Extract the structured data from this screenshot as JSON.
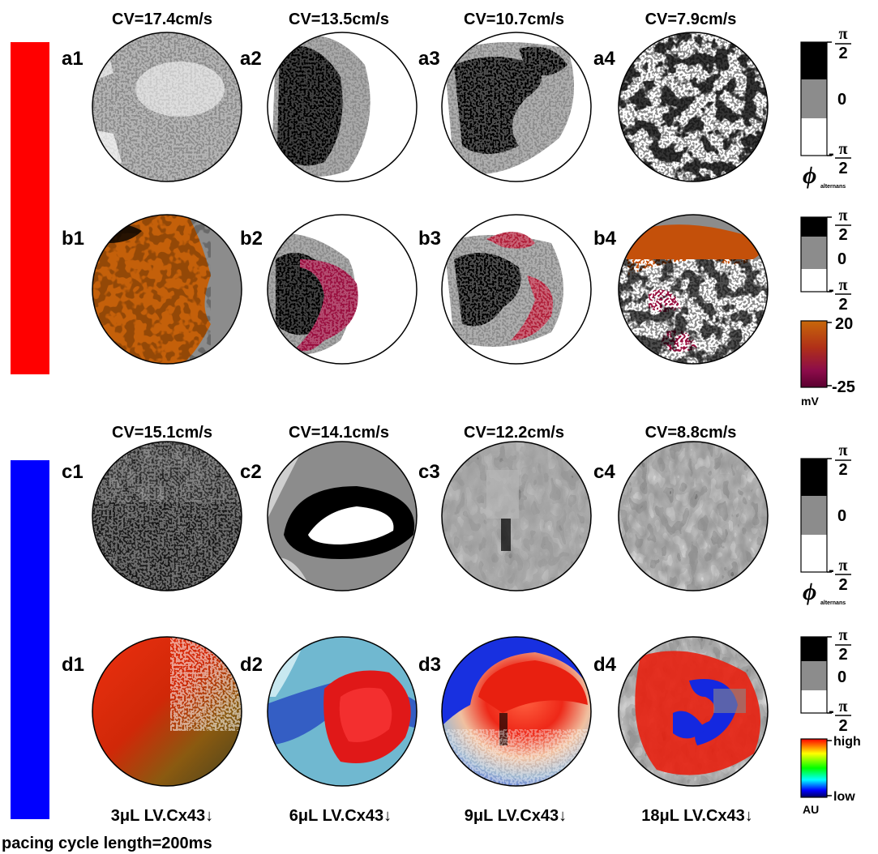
{
  "figure": {
    "top_group": {
      "cv_labels": [
        "CV=17.4cm/s",
        "CV=13.5cm/s",
        "CV=10.7cm/s",
        "CV=7.9cm/s"
      ],
      "row_a_labels": [
        "a1",
        "a2",
        "a3",
        "a4"
      ],
      "row_b_labels": [
        "b1",
        "b2",
        "b3",
        "b4"
      ],
      "bar_color": "#ff0000"
    },
    "bottom_group": {
      "cv_labels": [
        "CV=15.1cm/s",
        "CV=14.1cm/s",
        "CV=12.2cm/s",
        "CV=8.8cm/s"
      ],
      "row_c_labels": [
        "c1",
        "c2",
        "c3",
        "c4"
      ],
      "row_d_labels": [
        "d1",
        "d2",
        "d3",
        "d4"
      ],
      "bar_color": "#0000ff"
    },
    "column_labels": [
      "3μL LV.Cx43↓",
      "6μL LV.Cx43↓",
      "9μL LV.Cx43↓",
      "18μL LV.Cx43↓"
    ],
    "footer": "pacing cycle length=200ms",
    "phase_legend": {
      "top": "π",
      "top_den": "2",
      "middle": "0",
      "bottom": "-",
      "bottom_num": "π",
      "bottom_den": "2",
      "phi_symbol": "ϕ",
      "phi_subscript": "alternans"
    },
    "voltage_legend": {
      "max": "20",
      "min": "-25",
      "unit": "mV",
      "colors": [
        "#c8680a",
        "#b03018",
        "#8c0c4a",
        "#70003a"
      ]
    },
    "amplitude_legend": {
      "max": "high",
      "min": "low",
      "unit": "AU",
      "colors": [
        "#ff0000",
        "#ffff00",
        "#00ff00",
        "#00ffff",
        "#0000ff",
        "#000080"
      ]
    }
  }
}
